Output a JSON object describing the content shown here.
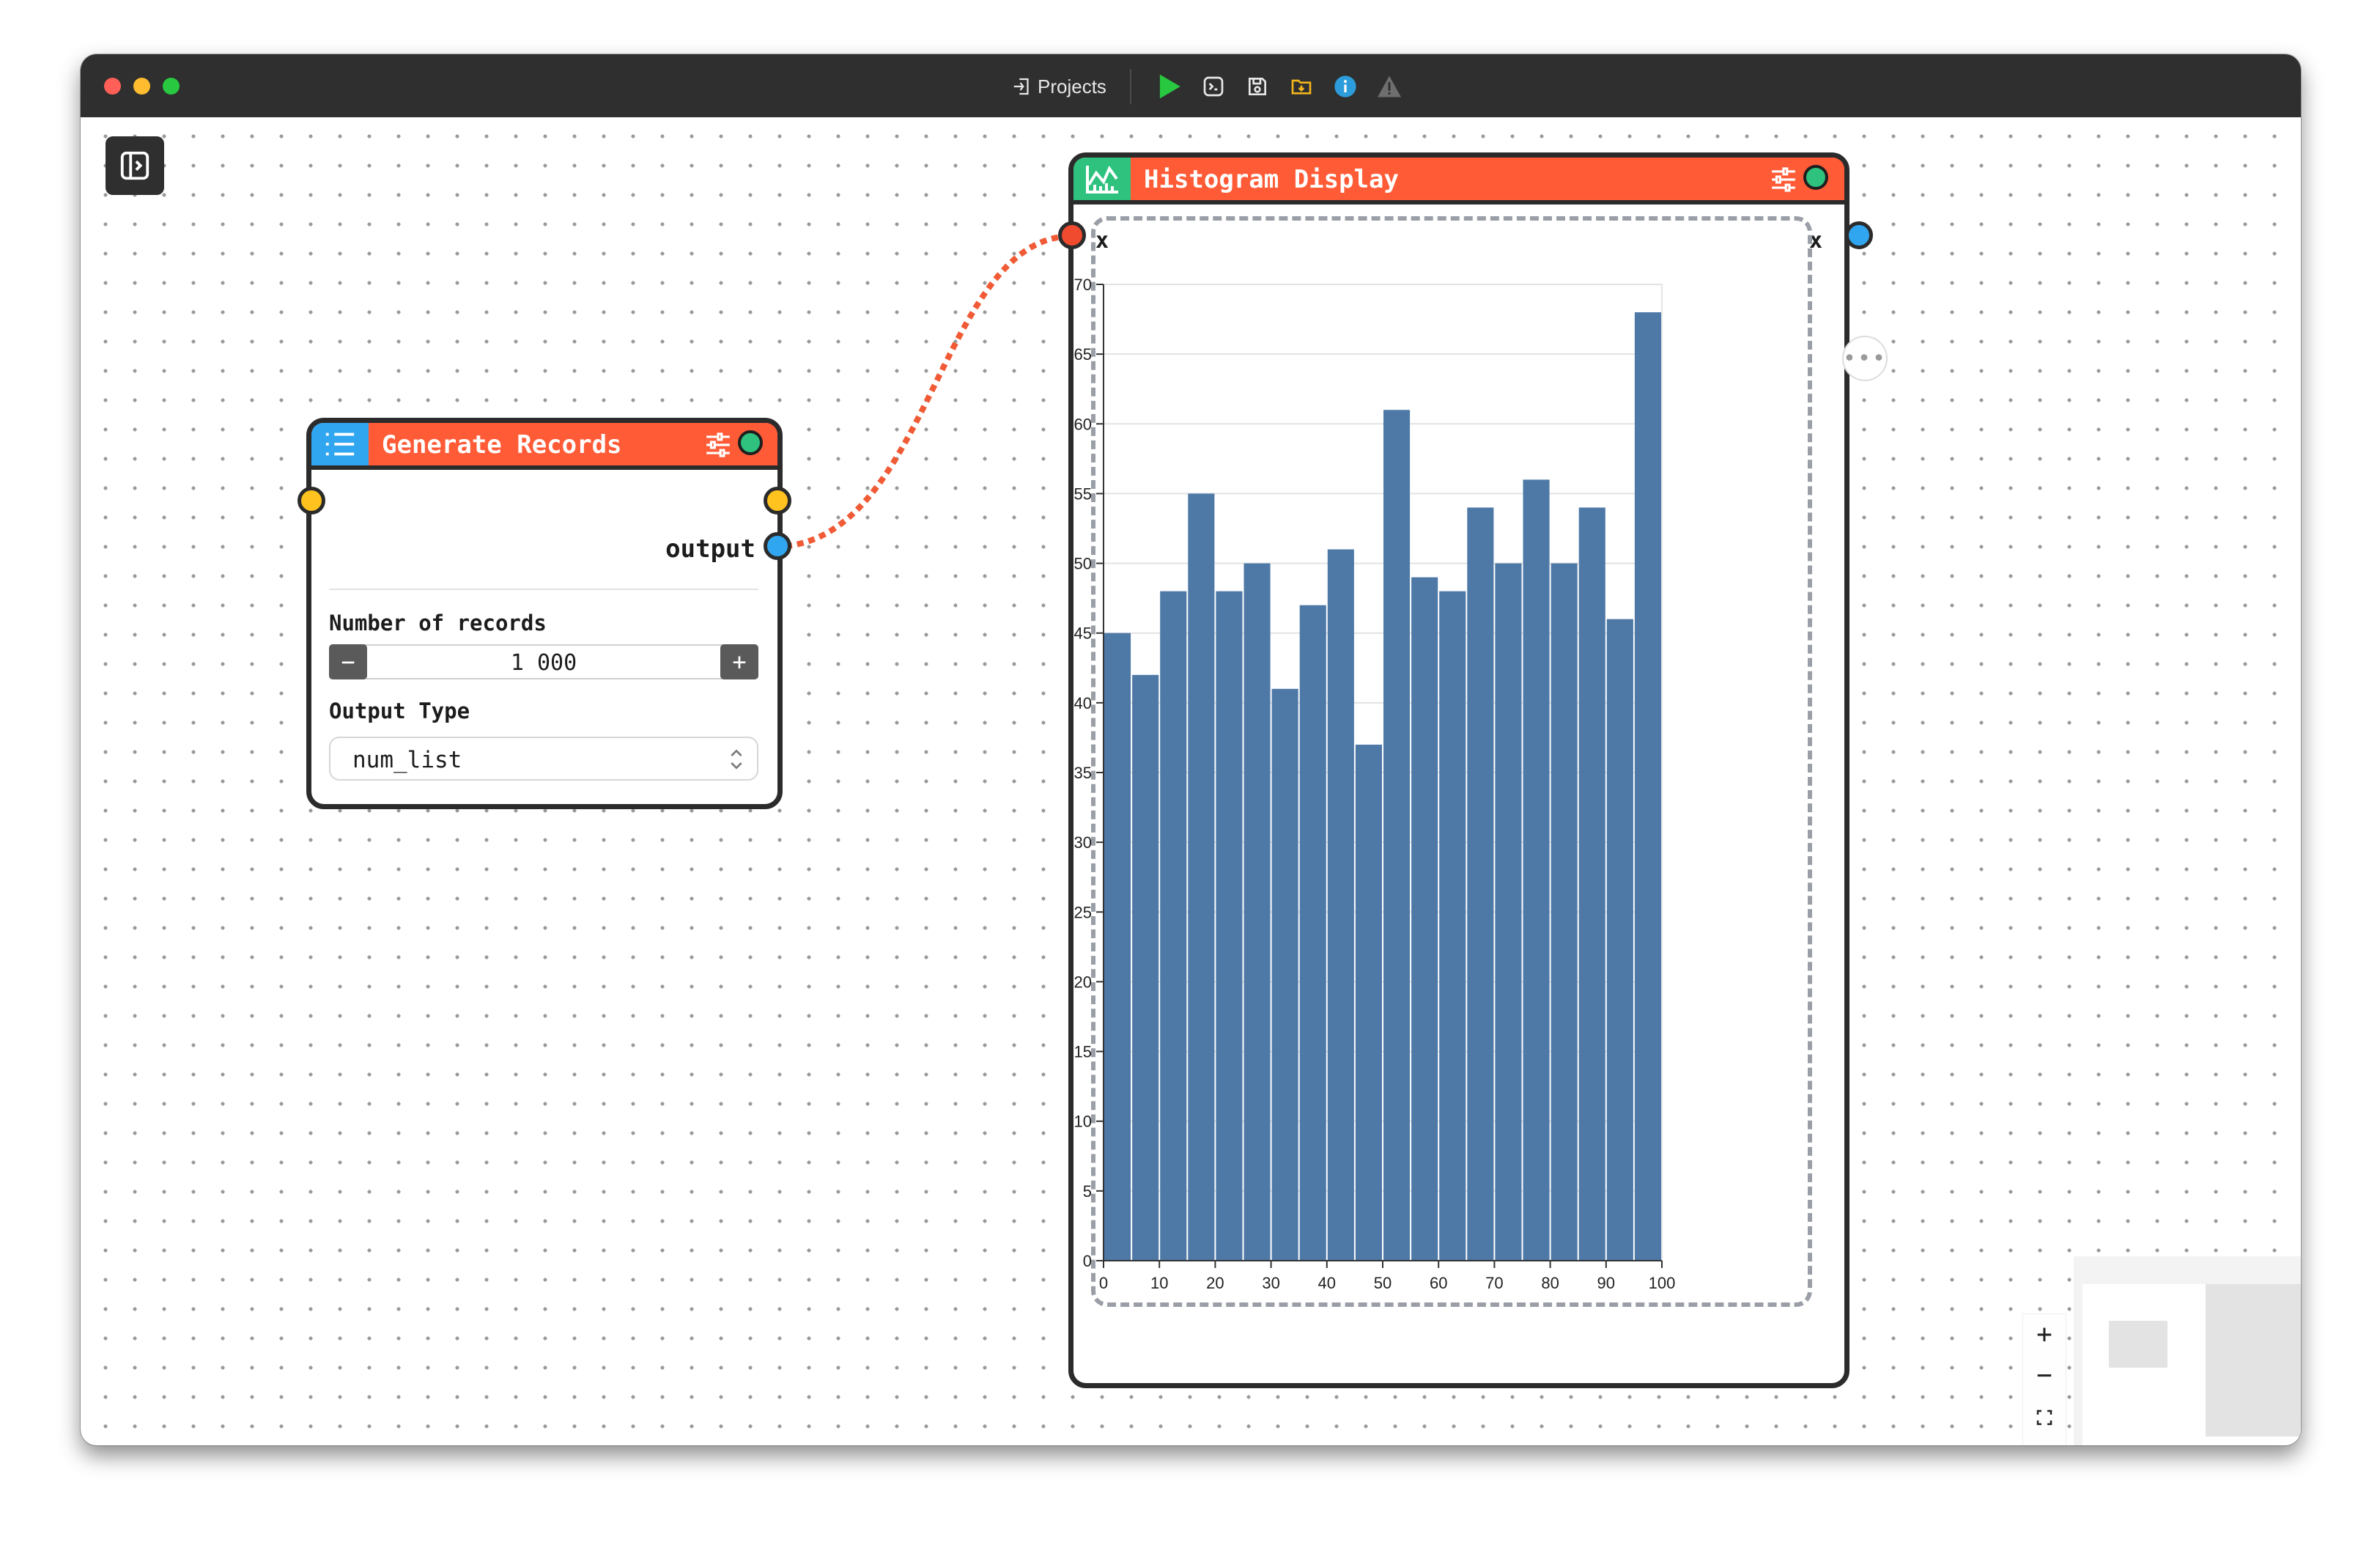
{
  "toolbar": {
    "projects_label": "Projects",
    "icons": [
      "play-icon",
      "terminal-icon",
      "save-icon",
      "folder-download-icon",
      "info-icon",
      "warning-icon"
    ]
  },
  "nodes": {
    "generate": {
      "title": "Generate Records",
      "output_label": "output",
      "records_label": "Number of records",
      "records_value": "1 000",
      "minus": "−",
      "plus": "+",
      "output_type_label": "Output Type",
      "output_type_value": "num_list"
    },
    "histogram": {
      "title": "Histogram Display",
      "input_label": "x",
      "output_label": "x",
      "more_label": "•••"
    }
  },
  "controls": {
    "zoom_in": "+",
    "zoom_out": "−"
  },
  "colors": {
    "node_header": "#ff5b37",
    "generate_icon_bg": "#31a6f0",
    "histogram_icon_bg": "#2ec27e",
    "bar_color": "#4e79a7",
    "edge_color": "#f05a35"
  },
  "chart_data": {
    "type": "bar",
    "x": [
      0,
      5,
      10,
      15,
      20,
      25,
      30,
      35,
      40,
      45,
      50,
      55,
      60,
      65,
      70,
      75,
      80,
      85,
      90,
      95
    ],
    "values": [
      45,
      42,
      48,
      55,
      48,
      50,
      41,
      47,
      51,
      37,
      61,
      49,
      48,
      54,
      50,
      56,
      50,
      54,
      46,
      68
    ],
    "bin_width": 5,
    "xlim": [
      0,
      100
    ],
    "ylim": [
      0,
      70
    ],
    "x_ticks": [
      0,
      10,
      20,
      30,
      40,
      50,
      60,
      70,
      80,
      90,
      100
    ],
    "y_ticks": [
      0,
      5,
      10,
      15,
      20,
      25,
      30,
      35,
      40,
      45,
      50,
      55,
      60,
      65,
      70
    ],
    "grid": true
  }
}
